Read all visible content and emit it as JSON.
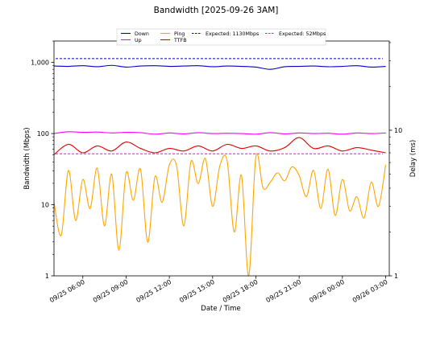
{
  "chart_data": {
    "type": "line",
    "title": "Bandwidth [2025-09-26 3AM]",
    "xlabel": "Date / Time",
    "ylabel": "Bandwidth (Mbps)",
    "ylabel_right": "Delay (ms)",
    "y_scale": "log",
    "y2_scale": "log",
    "ylim": [
      1,
      2000
    ],
    "y2lim": [
      1,
      41
    ],
    "y_ticks": [
      {
        "value": 1,
        "label": "1"
      },
      {
        "value": 10,
        "label": "10"
      },
      {
        "value": 100,
        "label": "100"
      },
      {
        "value": 1000,
        "label": "1,000"
      }
    ],
    "y2_ticks": [
      {
        "value": 1,
        "label": "1"
      },
      {
        "value": 10,
        "label": "10"
      }
    ],
    "xlim": [
      "2025-09-25 04:00",
      "2025-09-26 03:15"
    ],
    "x_ticks": [
      {
        "value": "2025-09-25 06:00",
        "label": "09/25 06:00"
      },
      {
        "value": "2025-09-25 09:00",
        "label": "09/25 09:00"
      },
      {
        "value": "2025-09-25 12:00",
        "label": "09/25 12:00"
      },
      {
        "value": "2025-09-25 15:00",
        "label": "09/25 15:00"
      },
      {
        "value": "2025-09-25 18:00",
        "label": "09/25 18:00"
      },
      {
        "value": "2025-09-25 21:00",
        "label": "09/25 21:00"
      },
      {
        "value": "2025-09-26 00:00",
        "label": "09/26 00:00"
      },
      {
        "value": "2025-09-26 03:00",
        "label": "09/26 03:00"
      }
    ],
    "grid": false,
    "legend_position": "top",
    "reference_lines": [
      {
        "name": "Expected: 1130Mbps",
        "value": 1130,
        "axis": "left",
        "color": "#0000cc",
        "dash": true
      },
      {
        "name": "Expected: 52Mbps",
        "value": 52,
        "axis": "left",
        "color": "#ff00ff",
        "dash": true
      }
    ],
    "series": [
      {
        "name": "Down",
        "axis": "left",
        "color": "#0000cc",
        "x": [
          "2025-09-25 04:00",
          "2025-09-25 05:00",
          "2025-09-25 06:00",
          "2025-09-25 07:00",
          "2025-09-25 08:00",
          "2025-09-25 09:00",
          "2025-09-25 10:00",
          "2025-09-25 11:00",
          "2025-09-25 12:00",
          "2025-09-25 13:00",
          "2025-09-25 14:00",
          "2025-09-25 15:00",
          "2025-09-25 16:00",
          "2025-09-25 17:00",
          "2025-09-25 18:00",
          "2025-09-25 19:00",
          "2025-09-25 20:00",
          "2025-09-25 21:00",
          "2025-09-25 22:00",
          "2025-09-25 23:00",
          "2025-09-26 00:00",
          "2025-09-26 01:00",
          "2025-09-26 02:00",
          "2025-09-26 03:00"
        ],
        "values": [
          890,
          880,
          900,
          870,
          910,
          860,
          890,
          900,
          880,
          890,
          900,
          870,
          890,
          880,
          860,
          800,
          870,
          880,
          890,
          870,
          880,
          900,
          860,
          880
        ]
      },
      {
        "name": "Up",
        "axis": "left",
        "color": "#ff00ff",
        "x": [
          "2025-09-25 04:00",
          "2025-09-25 05:00",
          "2025-09-25 06:00",
          "2025-09-25 07:00",
          "2025-09-25 08:00",
          "2025-09-25 09:00",
          "2025-09-25 10:00",
          "2025-09-25 11:00",
          "2025-09-25 12:00",
          "2025-09-25 13:00",
          "2025-09-25 14:00",
          "2025-09-25 15:00",
          "2025-09-25 16:00",
          "2025-09-25 17:00",
          "2025-09-25 18:00",
          "2025-09-25 19:00",
          "2025-09-25 20:00",
          "2025-09-25 21:00",
          "2025-09-25 22:00",
          "2025-09-25 23:00",
          "2025-09-26 00:00",
          "2025-09-26 01:00",
          "2025-09-26 02:00",
          "2025-09-26 03:00"
        ],
        "values": [
          100,
          106,
          104,
          105,
          102,
          104,
          103,
          98,
          102,
          99,
          103,
          100,
          101,
          100,
          98,
          103,
          99,
          102,
          100,
          101,
          98,
          102,
          100,
          102
        ]
      },
      {
        "name": "Ping",
        "axis": "right",
        "color": "#ffa500",
        "x": [
          "2025-09-25 04:00",
          "2025-09-25 04:30",
          "2025-09-25 05:00",
          "2025-09-25 05:30",
          "2025-09-25 06:00",
          "2025-09-25 06:30",
          "2025-09-25 07:00",
          "2025-09-25 07:30",
          "2025-09-25 08:00",
          "2025-09-25 08:30",
          "2025-09-25 09:00",
          "2025-09-25 09:30",
          "2025-09-25 10:00",
          "2025-09-25 10:30",
          "2025-09-25 11:00",
          "2025-09-25 11:30",
          "2025-09-25 12:00",
          "2025-09-25 12:30",
          "2025-09-25 13:00",
          "2025-09-25 13:30",
          "2025-09-25 14:00",
          "2025-09-25 14:30",
          "2025-09-25 15:00",
          "2025-09-25 15:30",
          "2025-09-25 16:00",
          "2025-09-25 16:30",
          "2025-09-25 17:00",
          "2025-09-25 17:30",
          "2025-09-25 18:00",
          "2025-09-25 18:30",
          "2025-09-25 19:00",
          "2025-09-25 19:30",
          "2025-09-25 20:00",
          "2025-09-25 20:30",
          "2025-09-25 21:00",
          "2025-09-25 21:30",
          "2025-09-25 22:00",
          "2025-09-25 22:30",
          "2025-09-25 23:00",
          "2025-09-25 23:30",
          "2025-09-26 00:00",
          "2025-09-26 00:30",
          "2025-09-26 01:00",
          "2025-09-26 01:30",
          "2025-09-26 02:00",
          "2025-09-26 02:30",
          "2025-09-26 03:00"
        ],
        "values": [
          3.2,
          1.9,
          5.3,
          2.4,
          4.6,
          2.9,
          5.5,
          2.2,
          5.0,
          1.5,
          5.1,
          3.3,
          5.4,
          1.7,
          4.8,
          3.2,
          5.8,
          5.7,
          2.2,
          6.1,
          4.3,
          6.4,
          3.0,
          5.7,
          6.2,
          2.0,
          4.9,
          1.0,
          6.6,
          4.0,
          4.4,
          5.1,
          4.5,
          5.6,
          4.9,
          3.5,
          5.3,
          2.9,
          5.4,
          2.6,
          4.6,
          2.8,
          3.5,
          2.5,
          4.4,
          3.0,
          5.8
        ]
      },
      {
        "name": "TTFB",
        "axis": "right",
        "color": "#e00000",
        "x": [
          "2025-09-25 04:00",
          "2025-09-25 05:00",
          "2025-09-25 06:00",
          "2025-09-25 07:00",
          "2025-09-25 08:00",
          "2025-09-25 09:00",
          "2025-09-25 10:00",
          "2025-09-25 11:00",
          "2025-09-25 12:00",
          "2025-09-25 13:00",
          "2025-09-25 14:00",
          "2025-09-25 15:00",
          "2025-09-25 16:00",
          "2025-09-25 17:00",
          "2025-09-25 18:00",
          "2025-09-25 19:00",
          "2025-09-25 20:00",
          "2025-09-25 21:00",
          "2025-09-25 22:00",
          "2025-09-25 23:00",
          "2025-09-26 00:00",
          "2025-09-26 01:00",
          "2025-09-26 02:00",
          "2025-09-26 03:00"
        ],
        "values": [
          6.8,
          8.0,
          7.0,
          7.8,
          7.2,
          8.3,
          7.5,
          7.0,
          7.5,
          7.2,
          7.8,
          7.2,
          8.0,
          7.5,
          7.8,
          7.2,
          7.6,
          8.9,
          7.5,
          7.8,
          7.2,
          7.6,
          7.3,
          7.0
        ]
      }
    ]
  }
}
